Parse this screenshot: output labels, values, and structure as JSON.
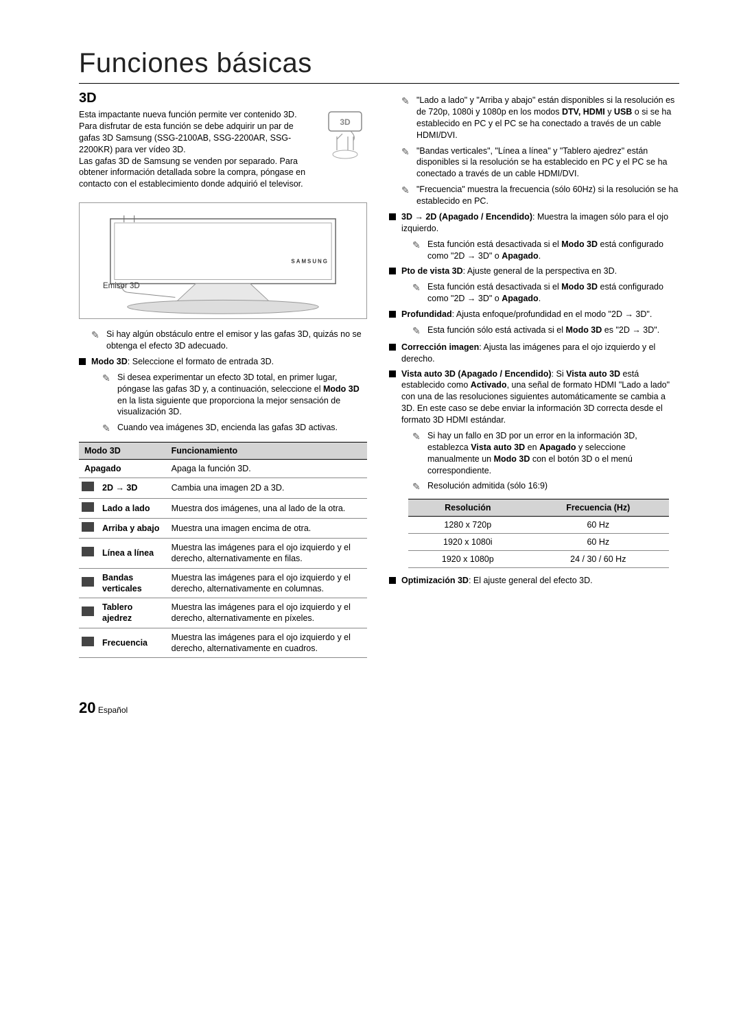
{
  "title": "Funciones básicas",
  "heading_3d": "3D",
  "intro_p1": "Esta impactante nueva función permite ver contenido 3D. Para disfrutar de esta función se debe adquirir un par de gafas 3D Samsung (SSG-2100AB, SSG-2200AR, SSG-2200KR) para ver vídeo 3D.",
  "intro_p2": "Las gafas 3D de Samsung se venden por separado. Para obtener información detallada sobre la compra, póngase en contacto con el establecimiento donde adquirió el televisor.",
  "emisor_label": "Emisor 3D",
  "note_obstacle": "Si hay algún obstáculo entre el emisor y las gafas 3D, quizás no se obtenga el efecto 3D adecuado.",
  "modo3d_bullet_pre": "Modo 3D",
  "modo3d_bullet": ": Seleccione el formato de entrada 3D.",
  "note_total": "Si desea experimentar un efecto 3D total, en primer lugar, póngase las gafas 3D y, a continuación, seleccione el ",
  "note_total_b": "Modo 3D",
  "note_total_2": " en la lista siguiente que proporciona la mejor sensación de visualización 3D.",
  "note_glasses": "Cuando vea imágenes 3D, encienda las gafas 3D activas.",
  "modes_table": {
    "h1": "Modo 3D",
    "h2": "Funcionamiento",
    "rows": [
      {
        "icon": false,
        "label": "Apagado",
        "desc": "Apaga la función 3D."
      },
      {
        "icon": true,
        "label": "2D → 3D",
        "desc": "Cambia una imagen 2D a 3D."
      },
      {
        "icon": true,
        "label": "Lado a lado",
        "desc": "Muestra dos imágenes, una al lado de la otra."
      },
      {
        "icon": true,
        "label": "Arriba y abajo",
        "desc": "Muestra una imagen encima de otra."
      },
      {
        "icon": true,
        "label": "Línea a línea",
        "desc": "Muestra las imágenes para el ojo izquierdo y el derecho, alternativamente en filas."
      },
      {
        "icon": true,
        "label": "Bandas verticales",
        "desc": "Muestra las imágenes para el ojo izquierdo y el derecho, alternativamente en columnas."
      },
      {
        "icon": true,
        "label": "Tablero ajedrez",
        "desc": "Muestra las imágenes para el ojo izquierdo y el derecho, alternativamente en píxeles."
      },
      {
        "icon": true,
        "label": "Frecuencia",
        "desc": "Muestra las imágenes para el ojo izquierdo y el derecho, alternativamente en cuadros."
      }
    ]
  },
  "right_notes": [
    "\"Lado a lado\" y \"Arriba y abajo\" están disponibles si la resolución es de 720p, 1080i y 1080p en los modos <b>DTV, HDMI</b> y <b>USB</b> o si se ha establecido en PC y el PC se ha conectado a través de un cable HDMI/DVI.",
    "\"Bandas verticales\", \"Línea a línea\" y \"Tablero ajedrez\" están disponibles si la resolución se ha establecido en PC y el PC se ha conectado a través de un cable HDMI/DVI.",
    "\"Frecuencia\" muestra la frecuencia (sólo 60Hz) si la resolución se ha establecido en PC."
  ],
  "bullets": [
    {
      "b": "3D → 2D (Apagado / Encendido)",
      "t": ": Muestra la imagen sólo para el ojo izquierdo.",
      "notes": [
        "Esta función está desactivada si el <b>Modo 3D</b> está configurado como \"2D → 3D\" o <b>Apagado</b>."
      ]
    },
    {
      "b": "Pto de vista 3D",
      "t": ": Ajuste general de la perspectiva en 3D.",
      "notes": [
        "Esta función está desactivada si el <b>Modo 3D</b> está configurado como \"2D → 3D\" o <b>Apagado</b>."
      ]
    },
    {
      "b": "Profundidad",
      "t": ": Ajusta enfoque/profundidad en el modo \"2D → 3D\".",
      "notes": [
        "Esta función sólo está activada si el <b>Modo 3D</b> es \"2D → 3D\"."
      ]
    },
    {
      "b": "Corrección imagen",
      "t": ": Ajusta las imágenes para el ojo izquierdo y el derecho.",
      "notes": []
    },
    {
      "b": "Vista auto 3D (Apagado / Encendido)",
      "t": ": Si <b>Vista auto 3D</b> está establecido como <b>Activado</b>, una señal de formato HDMI \"Lado a lado\" con una de las resoluciones siguientes automáticamente se cambia a 3D. En este caso se debe enviar la información 3D correcta desde el formato 3D HDMI estándar.",
      "notes": [
        "Si hay un fallo en 3D por un error en la información 3D, establezca <b>Vista auto 3D</b> en <b>Apagado</b> y seleccione manualmente un <b>Modo 3D</b> con el botón 3D o el menú correspondiente.",
        "Resolución admitida (sólo 16:9)"
      ]
    }
  ],
  "res_table": {
    "h1": "Resolución",
    "h2": "Frecuencia (Hz)",
    "rows": [
      [
        "1280 x 720p",
        "60 Hz"
      ],
      [
        "1920 x 1080i",
        "60 Hz"
      ],
      [
        "1920 x 1080p",
        "24 / 30 / 60 Hz"
      ]
    ]
  },
  "opt_bullet_b": "Optimización 3D",
  "opt_bullet_t": ": El ajuste general del efecto 3D.",
  "page_number": "20",
  "page_lang": "Español"
}
